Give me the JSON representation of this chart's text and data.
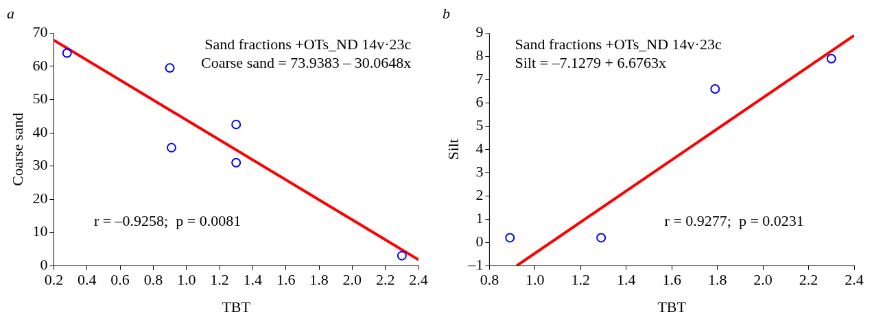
{
  "chart_data": [
    {
      "type": "scatter",
      "title": "a",
      "xlabel": "TBT",
      "ylabel": "Coarse sand",
      "xlim": [
        0.2,
        2.4
      ],
      "xticks": [
        {
          "value": 0.2,
          "label": "0.2"
        },
        {
          "value": 0.4,
          "label": "0.4"
        },
        {
          "value": 0.6,
          "label": "0.6"
        },
        {
          "value": 0.8,
          "label": "0.8"
        },
        {
          "value": 1.0,
          "label": "1.0"
        },
        {
          "value": 1.2,
          "label": "1.2"
        },
        {
          "value": 1.4,
          "label": "1.4"
        },
        {
          "value": 1.6,
          "label": "1.6"
        },
        {
          "value": 1.8,
          "label": "1.8"
        },
        {
          "value": 2.0,
          "label": "2.0"
        },
        {
          "value": 2.2,
          "label": "2.2"
        },
        {
          "value": 2.4,
          "label": "2.4"
        }
      ],
      "ylim": [
        0,
        70
      ],
      "yticks": [
        0,
        10,
        20,
        30,
        40,
        50,
        60,
        70
      ],
      "grid": false,
      "legend": false,
      "marker": "circle",
      "series": [
        {
          "color": "#0000ff",
          "x": [
            0.28,
            0.9,
            0.91,
            1.3,
            1.3,
            2.3
          ],
          "values": [
            64,
            59.5,
            35.5,
            42.5,
            31,
            3
          ]
        },
        {
          "type": "line",
          "color": "#ff0000",
          "marker": "none",
          "line_style": "solid",
          "x": [
            0.2,
            2.4
          ],
          "values": [
            67.9,
            1.8
          ]
        }
      ],
      "annotations": [
        "Sand fractions +OTs_ND 14v·23c",
        "Coarse sand = 73.9383 – 30.0648x",
        "r = –0.9258;  p = 0.0081"
      ]
    },
    {
      "type": "scatter",
      "title": "b",
      "xlabel": "TBT",
      "ylabel": "Silt",
      "xlim": [
        0.8,
        2.4
      ],
      "xticks": [
        {
          "value": 0.8,
          "label": "0.8"
        },
        {
          "value": 1.0,
          "label": "1.0"
        },
        {
          "value": 1.2,
          "label": "1.2"
        },
        {
          "value": 1.4,
          "label": "1.4"
        },
        {
          "value": 1.6,
          "label": "1.6"
        },
        {
          "value": 1.8,
          "label": "1.8"
        },
        {
          "value": 2.0,
          "label": "2.0"
        },
        {
          "value": 2.2,
          "label": "2.2"
        },
        {
          "value": 2.4,
          "label": "2.4"
        }
      ],
      "ylim": [
        -1,
        9
      ],
      "yticks": [
        {
          "value": -1,
          "label": "–1"
        },
        0,
        1,
        2,
        3,
        4,
        5,
        6,
        7,
        8,
        9
      ],
      "grid": false,
      "legend": false,
      "marker": "circle",
      "series": [
        {
          "color": "#0000ff",
          "x": [
            0.89,
            1.29,
            1.79,
            2.3
          ],
          "values": [
            0.2,
            0.2,
            6.6,
            7.9
          ]
        },
        {
          "type": "line",
          "color": "#ff0000",
          "marker": "none",
          "line_style": "solid",
          "x": [
            0.92,
            2.4
          ],
          "values": [
            -1,
            8.9
          ]
        }
      ],
      "annotations": [
        "Sand fractions +OTs_ND 14v·23c",
        "Silt = –7.1279 + 6.6763x",
        "r = 0.9277;  p = 0.0231"
      ]
    }
  ]
}
